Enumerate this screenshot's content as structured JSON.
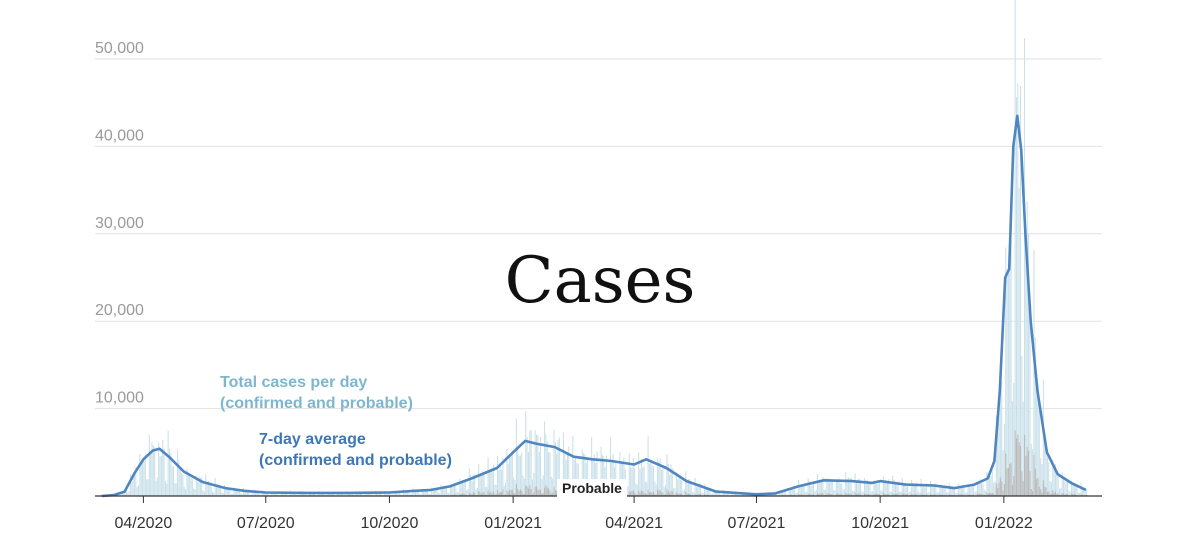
{
  "chart_data": {
    "type": "bar",
    "title": "Cases",
    "y_ticks": [
      "10,000",
      "20,000",
      "30,000",
      "40,000",
      "50,000"
    ],
    "y_tick_values": [
      10000,
      20000,
      30000,
      40000,
      50000
    ],
    "ylim": [
      0,
      50000
    ],
    "grid": true,
    "x_tick_labels": [
      "04/2020",
      "07/2020",
      "10/2020",
      "01/2021",
      "04/2021",
      "07/2021",
      "10/2021",
      "01/2022"
    ],
    "x_tick_dates": [
      "2020-04-01",
      "2020-07-01",
      "2020-10-01",
      "2021-01-01",
      "2021-04-01",
      "2021-07-01",
      "2021-10-01",
      "2022-01-01"
    ],
    "xlim": [
      "2020-02-25",
      "2022-03-15"
    ],
    "colors": {
      "total_bars": "#c9e0ea",
      "probable_bars": "#b9b9b9",
      "average_line": "#4f86c0",
      "total_label": "#7fb6cf",
      "average_label": "#3d78b6"
    },
    "series": [
      {
        "kind": "line",
        "annotation": [
          "7-day average",
          "(confirmed and probable)"
        ],
        "points": [
          [
            "2020-03-01",
            0
          ],
          [
            "2020-03-10",
            100
          ],
          [
            "2020-03-18",
            500
          ],
          [
            "2020-03-25",
            2500
          ],
          [
            "2020-04-01",
            4200
          ],
          [
            "2020-04-08",
            5200
          ],
          [
            "2020-04-13",
            5400
          ],
          [
            "2020-04-20",
            4500
          ],
          [
            "2020-05-01",
            2800
          ],
          [
            "2020-05-15",
            1600
          ],
          [
            "2020-06-01",
            900
          ],
          [
            "2020-06-15",
            600
          ],
          [
            "2020-07-01",
            400
          ],
          [
            "2020-08-01",
            350
          ],
          [
            "2020-09-01",
            350
          ],
          [
            "2020-10-01",
            400
          ],
          [
            "2020-10-20",
            600
          ],
          [
            "2020-11-01",
            700
          ],
          [
            "2020-11-15",
            1100
          ],
          [
            "2020-12-01",
            2000
          ],
          [
            "2020-12-20",
            3200
          ],
          [
            "2021-01-01",
            5000
          ],
          [
            "2021-01-10",
            6300
          ],
          [
            "2021-01-18",
            6000
          ],
          [
            "2021-02-01",
            5600
          ],
          [
            "2021-02-15",
            4500
          ],
          [
            "2021-03-01",
            4200
          ],
          [
            "2021-03-15",
            4000
          ],
          [
            "2021-04-01",
            3600
          ],
          [
            "2021-04-10",
            4200
          ],
          [
            "2021-04-25",
            3200
          ],
          [
            "2021-05-10",
            1700
          ],
          [
            "2021-06-01",
            500
          ],
          [
            "2021-07-01",
            200
          ],
          [
            "2021-07-15",
            300
          ],
          [
            "2021-08-01",
            1100
          ],
          [
            "2021-08-20",
            1800
          ],
          [
            "2021-09-10",
            1700
          ],
          [
            "2021-09-25",
            1500
          ],
          [
            "2021-10-01",
            1700
          ],
          [
            "2021-10-20",
            1300
          ],
          [
            "2021-11-10",
            1200
          ],
          [
            "2021-11-25",
            900
          ],
          [
            "2021-12-10",
            1300
          ],
          [
            "2021-12-20",
            2000
          ],
          [
            "2021-12-25",
            4000
          ],
          [
            "2021-12-29",
            12000
          ],
          [
            "2022-01-02",
            25000
          ],
          [
            "2022-01-05",
            26000
          ],
          [
            "2022-01-08",
            40000
          ],
          [
            "2022-01-11",
            43500
          ],
          [
            "2022-01-14",
            39500
          ],
          [
            "2022-01-17",
            30000
          ],
          [
            "2022-01-21",
            20000
          ],
          [
            "2022-01-26",
            12000
          ],
          [
            "2022-02-02",
            5000
          ],
          [
            "2022-02-10",
            2500
          ],
          [
            "2022-02-20",
            1500
          ],
          [
            "2022-03-03",
            700
          ]
        ]
      },
      {
        "kind": "bars",
        "annotation": [
          "Total cases per day",
          "(confirmed and probable)"
        ],
        "approximation": "daily bars follow the 7-day average with day-to-day noise"
      },
      {
        "kind": "bars",
        "annotation": [
          "Probable"
        ],
        "approximation": "roughly 10-20% of total cases per day"
      }
    ]
  }
}
